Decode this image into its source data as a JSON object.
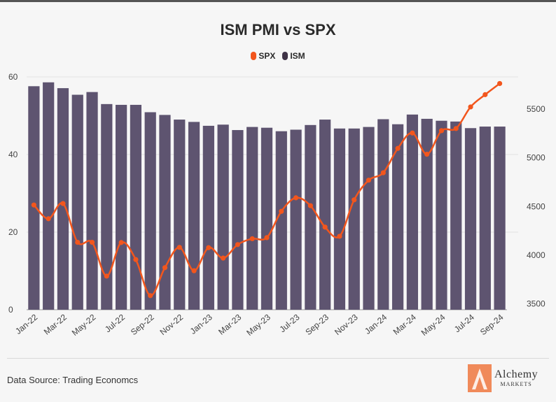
{
  "title": "ISM PMI vs SPX",
  "legend": [
    {
      "label": "SPX",
      "color": "#f2561d"
    },
    {
      "label": "ISM",
      "color": "#3f3347"
    }
  ],
  "source": "Data Source: Trading Economcs",
  "logo": {
    "name": "Alchemy",
    "sub": "MARKETS"
  },
  "chart_data": {
    "type": "bar+line",
    "categories": [
      "Jan-22",
      "Feb-22",
      "Mar-22",
      "Apr-22",
      "May-22",
      "Jun-22",
      "Jul-22",
      "Aug-22",
      "Sep-22",
      "Oct-22",
      "Nov-22",
      "Dec-22",
      "Jan-23",
      "Feb-23",
      "Mar-23",
      "Apr-23",
      "May-23",
      "Jun-23",
      "Jul-23",
      "Aug-23",
      "Sep-23",
      "Oct-23",
      "Nov-23",
      "Dec-23",
      "Jan-24",
      "Feb-24",
      "Mar-24",
      "Apr-24",
      "May-24",
      "Jun-24",
      "Jul-24",
      "Aug-24",
      "Sep-24"
    ],
    "x_tick_labels": [
      "Jan-22",
      "Mar-22",
      "May-22",
      "Jul-22",
      "Sep-22",
      "Nov-22",
      "Jan-23",
      "Mar-23",
      "May-23",
      "Jul-23",
      "Sep-23",
      "Nov-23",
      "Jan-24",
      "Mar-24",
      "May-24",
      "Jul-24",
      "Sep-24"
    ],
    "series": [
      {
        "name": "ISM",
        "type": "bar",
        "axis": "left",
        "color": "#5e5470",
        "values": [
          57.6,
          58.6,
          57.1,
          55.4,
          56.1,
          53.0,
          52.8,
          52.8,
          50.9,
          50.2,
          49.0,
          48.4,
          47.4,
          47.7,
          46.3,
          47.1,
          46.9,
          46.0,
          46.4,
          47.6,
          49.0,
          46.7,
          46.7,
          47.1,
          49.1,
          47.8,
          50.3,
          49.2,
          48.7,
          48.5,
          46.8,
          47.2,
          47.2
        ]
      },
      {
        "name": "SPX",
        "type": "line",
        "axis": "right",
        "color": "#f2561d",
        "values": [
          4515,
          4374,
          4530,
          4132,
          4132,
          3785,
          4130,
          3955,
          3585,
          3872,
          4080,
          3840,
          4077,
          3970,
          4109,
          4169,
          4180,
          4450,
          4589,
          4508,
          4288,
          4194,
          4568,
          4770,
          4846,
          5096,
          5254,
          5036,
          5278,
          5300,
          5522,
          5648,
          5762
        ]
      }
    ],
    "y_left": {
      "ticks": [
        0,
        20,
        40,
        60
      ],
      "range": [
        0,
        60
      ]
    },
    "y_right": {
      "ticks": [
        3500,
        4000,
        4500,
        5000,
        5500
      ],
      "range": [
        3440,
        5830
      ]
    }
  }
}
